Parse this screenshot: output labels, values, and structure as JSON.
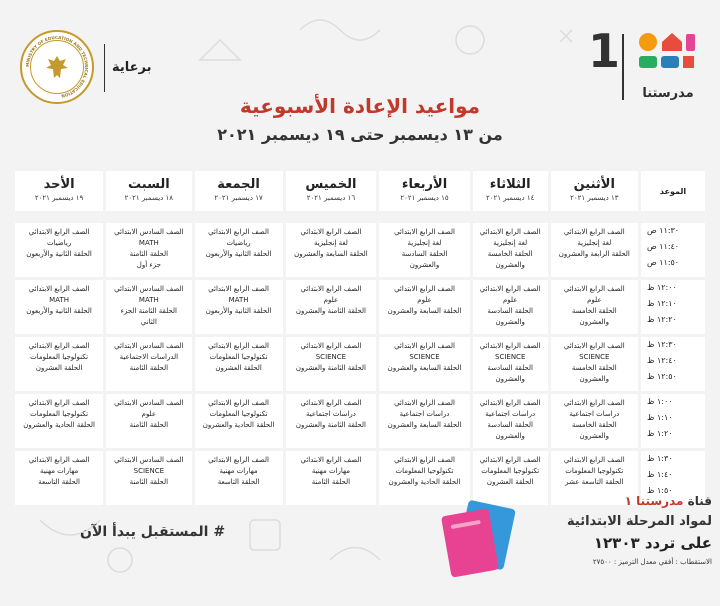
{
  "header": {
    "sponsor_label": "برعاية",
    "logo_number": "1",
    "logo_name": "مدرستنا",
    "title": "مواعيد الإعادة الأسبوعية",
    "subtitle": "من ١٣ ديسمبر حتى ١٩ ديسمبر ٢٠٢١"
  },
  "ministry_seal_text": "MINISTRY OF EDUCATION AND TECHNICAL EDUCATION",
  "colors": {
    "accent_red": "#c0392b",
    "logo_red": "#e74c3c",
    "logo_orange": "#f39c12",
    "logo_blue": "#2980b9",
    "logo_green": "#27ae60",
    "logo_pink": "#e84393"
  },
  "table": {
    "time_header": "الموعد",
    "days": [
      {
        "name": "الأثنين",
        "date": "١٣ ديسمبر ٢٠٢١"
      },
      {
        "name": "الثلاثاء",
        "date": "١٤ ديسمبر ٢٠٢١"
      },
      {
        "name": "الأربعاء",
        "date": "١٥ ديسمبر ٢٠٢١"
      },
      {
        "name": "الخميس",
        "date": "١٦ ديسمبر ٢٠٢١"
      },
      {
        "name": "الجمعة",
        "date": "١٧ ديسمبر ٢٠٢١"
      },
      {
        "name": "السبت",
        "date": "١٨ ديسمبر ٢٠٢١"
      },
      {
        "name": "الأحد",
        "date": "١٩ ديسمبر ٢٠٢١"
      }
    ],
    "rows": [
      {
        "times": [
          "١١:٣٠ ص",
          "١١:٤٠ ص",
          "١١:٥٠ ص"
        ],
        "cells": [
          [
            "الصف الرابع الابتدائي",
            "لغة إنجليزية",
            "الحلقة الرابعة والعشرون"
          ],
          [
            "الصف الرابع الابتدائي",
            "لغة إنجليزية",
            "الحلقة الخامسة",
            "والعشرون"
          ],
          [
            "الصف الرابع الابتدائي",
            "لغة إنجليزية",
            "الحلقة السادسة",
            "والعشرون"
          ],
          [
            "الصف الرابع الابتدائي",
            "لغة إنجليزية",
            "الحلقة السابعة والعشرون"
          ],
          [
            "الصف الرابع الابتدائي",
            "رياضيات",
            "الحلقة الثانية والأربعون"
          ],
          [
            "الصف السادس الابتدائي",
            "MATH",
            "الحلقة الثامنة",
            "جزء أول"
          ],
          [
            "الصف الرابع الابتدائي",
            "رياضيات",
            "الحلقة الثانية والأربعون"
          ]
        ]
      },
      {
        "times": [
          "١٢:٠٠ ظ",
          "١٢:١٠ ظ",
          "١٢:٢٠ ظ"
        ],
        "cells": [
          [
            "الصف الرابع الابتدائي",
            "علوم",
            "الحلقة الخامسة",
            "والعشرون"
          ],
          [
            "الصف الرابع الابتدائي",
            "علوم",
            "الحلقة السادسة",
            "والعشرون"
          ],
          [
            "الصف الرابع الابتدائي",
            "علوم",
            "الحلقة السابعة والعشرون"
          ],
          [
            "الصف الرابع الابتدائي",
            "علوم",
            "الحلقة الثامنة والعشرون"
          ],
          [
            "الصف الرابع الابتدائي",
            "MATH",
            "الحلقة الثانية والأربعون"
          ],
          [
            "الصف السادس الابتدائي",
            "MATH",
            "الحلقة الثامنة  الجزء",
            "الثاني"
          ],
          [
            "الصف الرابع الابتدائي",
            "MATH",
            "الحلقة الثانية والأربعون"
          ]
        ]
      },
      {
        "times": [
          "١٢:٣٠ ظ",
          "١٢:٤٠ ظ",
          "١٢:٥٠ ظ"
        ],
        "cells": [
          [
            "الصف الرابع الابتدائي",
            "SCIENCE",
            "الحلقة الخامسة",
            "والعشرون"
          ],
          [
            "الصف الرابع الابتدائي",
            "SCIENCE",
            "الحلقة السادسة",
            "والعشرون"
          ],
          [
            "الصف الرابع الابتدائي",
            "SCIENCE",
            "الحلقة السابعة والعشرون"
          ],
          [
            "الصف الرابع الابتدائي",
            "SCIENCE",
            "الحلقة الثامنة والعشرون"
          ],
          [
            "الصف الرابع الابتدائي",
            "تكنولوجيا المعلومات",
            "الحلقة العشرون"
          ],
          [
            "الصف السادس الابتدائي",
            "الدراسات الاجتماعية",
            "الحلقة الثامنة"
          ],
          [
            "الصف الرابع الابتدائي",
            "تكنولوجيا المعلومات",
            "الحلقة العشرون"
          ]
        ]
      },
      {
        "times": [
          "١:٠٠ ظ",
          "١:١٠ ظ",
          "١:٢٠ ظ"
        ],
        "cells": [
          [
            "الصف الرابع الابتدائي",
            "دراسات اجتماعية",
            "الحلقة الخامسة",
            "والعشرون"
          ],
          [
            "الصف الرابع الابتدائي",
            "دراسات اجتماعية",
            "الحلقة السادسة",
            "والعشرون"
          ],
          [
            "الصف الرابع الابتدائي",
            "دراسات اجتماعية",
            "الحلقة السابعة والعشرون"
          ],
          [
            "الصف الرابع الابتدائي",
            "دراسات اجتماعية",
            "الحلقة الثامنة والعشرون"
          ],
          [
            "الصف الرابع الابتدائي",
            "تكنولوجيا المعلومات",
            "الحلقة الحادية والعشرون"
          ],
          [
            "الصف السادس الابتدائي",
            "علوم",
            "الحلقة الثامنة"
          ],
          [
            "الصف الرابع الابتدائي",
            "تكنولوجيا المعلومات",
            "الحلقة الحادية والعشرون"
          ]
        ]
      },
      {
        "times": [
          "١:٣٠ ظ",
          "١:٤٠ ظ",
          "١:٥٠ ظ"
        ],
        "cells": [
          [
            "الصف الرابع الابتدائي",
            "تكنولوجيا المعلومات",
            "الحلقة التاسعة عشر"
          ],
          [
            "الصف الرابع الابتدائي",
            "تكنولوجيا المعلومات",
            "الحلقة العشرون"
          ],
          [
            "الصف الرابع الابتدائي",
            "تكنولوجيا المعلومات",
            "الحلقة الحادية والعشرون"
          ],
          [
            "الصف الرابع الابتدائي",
            "مهارات مهنية",
            "الحلقة الثامنة"
          ],
          [
            "الصف الرابع الابتدائي",
            "مهارات مهنية",
            "الحلقة التاسعة"
          ],
          [
            "الصف السادس الابتدائي",
            "SCIENCE",
            "الحلقة الثامنة"
          ],
          [
            "الصف الرابع الابتدائي",
            "مهارات مهنية",
            "الحلقة التاسعة"
          ]
        ]
      }
    ]
  },
  "footer": {
    "hashtag": "# المستقبل يبدأ الآن",
    "channel_prefix": "قناة",
    "channel_name": "مدرستنا ١",
    "channel_subject": "لمواد المرحلة الابتدائية",
    "frequency": "على تردد ١٢٣٠٣",
    "reception": "الاستقطاب : أفقي معدل الترميز : ٢٧٥٠٠"
  }
}
